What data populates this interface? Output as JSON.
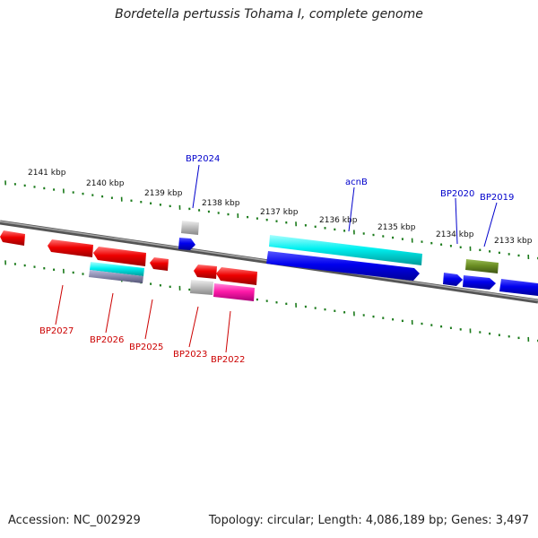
{
  "title": "Bordetella pertussis Tohama I, complete genome",
  "footer": {
    "accession": "Accession: NC_002929",
    "topology": "Topology: circular; Length: 4,086,189 bp; Genes: 3,497"
  },
  "colors": {
    "backbone": "#777777",
    "tick": "#1a7a1a",
    "forward_label": "#0000cc",
    "reverse_label": "#cc0000"
  },
  "kbp_ticks": [
    "2141 kbp",
    "2140 kbp",
    "2139 kbp",
    "2138 kbp",
    "2137 kbp",
    "2136 kbp",
    "2135 kbp",
    "2134 kbp",
    "2133 kbp"
  ],
  "genes": {
    "forward": [
      "BP2024",
      "acnB",
      "BP2020",
      "BP2019"
    ],
    "reverse": [
      "BP2027",
      "BP2026",
      "BP2025",
      "BP2023",
      "BP2022"
    ]
  }
}
